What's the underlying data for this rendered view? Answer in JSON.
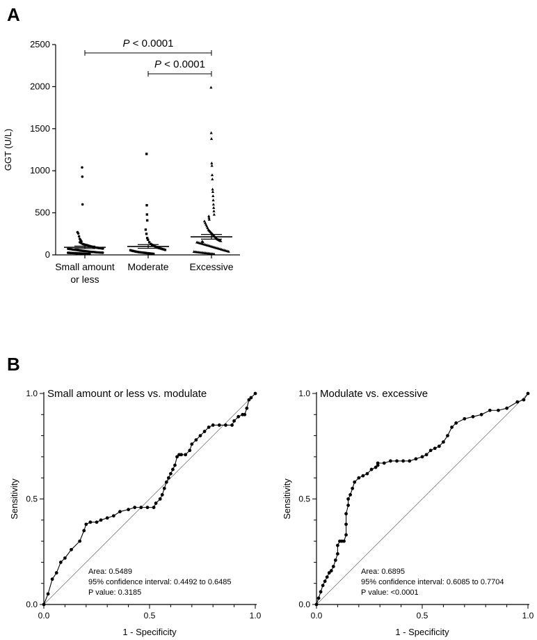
{
  "panels": {
    "a_label": "A",
    "b_label": "B"
  },
  "chart_data": [
    {
      "type": "scatter",
      "panel": "A",
      "ylabel": "GGT (U/L)",
      "ylim": [
        0,
        2500
      ],
      "yticks": [
        0,
        500,
        1000,
        1500,
        2000,
        2500
      ],
      "categories": [
        {
          "line1": "Small amount",
          "line2": "or less",
          "marker": "circle",
          "mean": 90,
          "sem": 15,
          "values": [
            1040,
            930,
            600,
            270,
            255,
            220,
            190,
            175,
            160,
            150,
            140,
            130,
            125,
            120,
            115,
            110,
            105,
            100,
            95,
            90,
            88,
            85,
            82,
            80,
            78,
            75,
            72,
            70,
            68,
            65,
            62,
            60,
            58,
            55,
            52,
            50,
            48,
            46,
            44,
            42,
            40,
            38,
            36,
            35,
            34,
            32,
            30,
            29,
            28,
            27,
            26,
            25,
            24,
            23,
            22,
            21,
            20,
            19,
            18,
            17,
            16,
            15,
            14,
            13,
            12,
            11,
            10
          ]
        },
        {
          "line1": "Moderate",
          "line2": "",
          "marker": "square",
          "mean": 100,
          "sem": 22,
          "values": [
            1200,
            590,
            480,
            410,
            300,
            250,
            200,
            180,
            150,
            130,
            120,
            110,
            100,
            90,
            85,
            80,
            75,
            70,
            65,
            60,
            55,
            50,
            46,
            42,
            38,
            35,
            32,
            30,
            28,
            26,
            24,
            22,
            20,
            18,
            16,
            14,
            12
          ]
        },
        {
          "line1": "Excessive",
          "line2": "",
          "marker": "triangle",
          "mean": 215,
          "sem": 28,
          "values": [
            1990,
            1450,
            1380,
            1090,
            1060,
            950,
            900,
            780,
            750,
            700,
            650,
            600,
            560,
            520,
            480,
            460,
            440,
            420,
            400,
            380,
            360,
            340,
            320,
            300,
            290,
            280,
            270,
            260,
            250,
            240,
            230,
            220,
            210,
            200,
            190,
            185,
            180,
            175,
            170,
            165,
            160,
            155,
            150,
            145,
            140,
            135,
            130,
            125,
            120,
            115,
            110,
            105,
            100,
            95,
            90,
            85,
            80,
            75,
            70,
            65,
            60,
            55,
            50,
            45,
            40,
            38,
            36,
            34,
            32,
            30,
            28,
            26,
            24,
            22,
            20,
            18,
            16,
            14,
            12,
            10
          ]
        }
      ],
      "comparisons": [
        {
          "from": 0,
          "to": 2,
          "label_p": "P",
          "label_rest": " < 0.0001"
        },
        {
          "from": 1,
          "to": 2,
          "label_p": "P",
          "label_rest": " < 0.0001"
        }
      ]
    },
    {
      "type": "line",
      "panel": "B-left",
      "title": "Small amount or less vs. modulate",
      "xlabel": "1 - Specificity",
      "ylabel": "Sensitivity",
      "xlim": [
        0,
        1
      ],
      "ylim": [
        0,
        1
      ],
      "xticks": [
        "0.0",
        "0.5",
        "1.0"
      ],
      "yticks": [
        "0.0",
        "0.5",
        "1.0"
      ],
      "area": "Area: 0.5489",
      "ci": "95% confidence interval: 0.4492 to 0.6485",
      "pvalue": "P value: 0.3185",
      "x": [
        0.0,
        0.02,
        0.04,
        0.06,
        0.08,
        0.1,
        0.13,
        0.17,
        0.19,
        0.2,
        0.22,
        0.25,
        0.27,
        0.3,
        0.33,
        0.36,
        0.4,
        0.43,
        0.46,
        0.49,
        0.52,
        0.53,
        0.55,
        0.56,
        0.57,
        0.58,
        0.59,
        0.6,
        0.61,
        0.62,
        0.63,
        0.64,
        0.65,
        0.67,
        0.69,
        0.7,
        0.72,
        0.74,
        0.76,
        0.78,
        0.8,
        0.83,
        0.86,
        0.89,
        0.9,
        0.92,
        0.94,
        0.95,
        0.96,
        0.97,
        0.98,
        1.0
      ],
      "y": [
        0.0,
        0.05,
        0.12,
        0.15,
        0.2,
        0.22,
        0.26,
        0.3,
        0.35,
        0.38,
        0.39,
        0.39,
        0.4,
        0.41,
        0.42,
        0.44,
        0.45,
        0.46,
        0.46,
        0.46,
        0.46,
        0.48,
        0.5,
        0.52,
        0.55,
        0.58,
        0.6,
        0.62,
        0.64,
        0.66,
        0.7,
        0.71,
        0.71,
        0.71,
        0.73,
        0.76,
        0.78,
        0.8,
        0.82,
        0.84,
        0.85,
        0.85,
        0.85,
        0.85,
        0.87,
        0.89,
        0.9,
        0.9,
        0.93,
        0.97,
        0.98,
        1.0
      ]
    },
    {
      "type": "line",
      "panel": "B-right",
      "title": "Modulate vs. excessive",
      "xlabel": "1 - Specificity",
      "ylabel": "Sensitivity",
      "xlim": [
        0,
        1
      ],
      "ylim": [
        0,
        1
      ],
      "xticks": [
        "0.0",
        "0.5",
        "1.0"
      ],
      "yticks": [
        "0.0",
        "0.5",
        "1.0"
      ],
      "area": "Area: 0.6895",
      "ci": "95% confidence interval: 0.6085 to 0.7704",
      "pvalue": "P value: <0.0001",
      "x": [
        0.0,
        0.01,
        0.02,
        0.03,
        0.04,
        0.05,
        0.06,
        0.07,
        0.08,
        0.09,
        0.1,
        0.1,
        0.11,
        0.12,
        0.13,
        0.14,
        0.14,
        0.14,
        0.15,
        0.15,
        0.16,
        0.17,
        0.18,
        0.2,
        0.22,
        0.24,
        0.26,
        0.28,
        0.29,
        0.29,
        0.32,
        0.35,
        0.38,
        0.41,
        0.44,
        0.47,
        0.5,
        0.52,
        0.54,
        0.56,
        0.58,
        0.6,
        0.62,
        0.64,
        0.66,
        0.7,
        0.74,
        0.78,
        0.82,
        0.86,
        0.9,
        0.95,
        0.98,
        1.0
      ],
      "y": [
        0.0,
        0.03,
        0.06,
        0.09,
        0.11,
        0.13,
        0.15,
        0.16,
        0.18,
        0.21,
        0.24,
        0.28,
        0.3,
        0.3,
        0.3,
        0.33,
        0.38,
        0.43,
        0.47,
        0.5,
        0.52,
        0.55,
        0.58,
        0.6,
        0.61,
        0.62,
        0.64,
        0.65,
        0.66,
        0.67,
        0.67,
        0.68,
        0.68,
        0.68,
        0.68,
        0.69,
        0.7,
        0.71,
        0.73,
        0.74,
        0.75,
        0.77,
        0.8,
        0.84,
        0.86,
        0.88,
        0.89,
        0.9,
        0.92,
        0.92,
        0.93,
        0.96,
        0.97,
        1.0
      ]
    }
  ]
}
